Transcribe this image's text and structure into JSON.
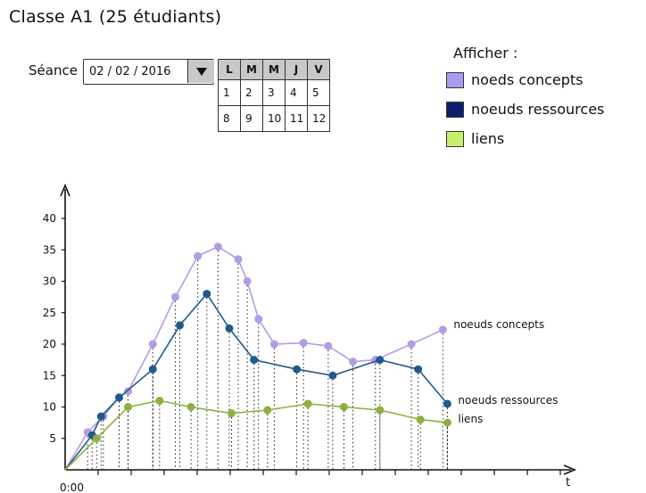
{
  "page": {
    "title": "Classe A1 (25 étudiants)"
  },
  "seance": {
    "label": "Séance",
    "date_value": "02 / 02 / 2016",
    "dropdown_icon": "triangle-down-icon"
  },
  "calendar": {
    "headers": [
      "L",
      "M",
      "M",
      "J",
      "V"
    ],
    "rows": [
      [
        "1",
        "2",
        "3",
        "4",
        "5"
      ],
      [
        "8",
        "9",
        "10",
        "11",
        "12"
      ]
    ]
  },
  "display": {
    "title": "Afficher :",
    "options": [
      {
        "label": "noeds concepts",
        "color": "#a99cf0"
      },
      {
        "label": "noeuds ressources",
        "color": "#0d1f6b"
      },
      {
        "label": "liens",
        "color": "#c8ef6a"
      }
    ]
  },
  "chart_data": {
    "type": "line",
    "ylim": [
      0,
      44
    ],
    "xlim": [
      0,
      100
    ],
    "y_ticks": [
      "5",
      "10",
      "15",
      "20",
      "25",
      "30",
      "35",
      "40"
    ],
    "x_start_label": "0:00",
    "x_axis_label": "t",
    "series": [
      {
        "name": "noeuds concepts",
        "color": "#b59be6",
        "points": [
          [
            0,
            0
          ],
          [
            5,
            6
          ],
          [
            8.5,
            8.5
          ],
          [
            12,
            11.5
          ],
          [
            14,
            12.5
          ],
          [
            19.5,
            20
          ],
          [
            24.5,
            27.5
          ],
          [
            29.5,
            34
          ],
          [
            34,
            35.5
          ],
          [
            38.5,
            33.5
          ],
          [
            40.5,
            30
          ],
          [
            43,
            24
          ],
          [
            46.5,
            20
          ],
          [
            53,
            20.2
          ],
          [
            58.5,
            19.7
          ],
          [
            64,
            17.2
          ],
          [
            69,
            17.5
          ],
          [
            77,
            20
          ],
          [
            84,
            22.3
          ]
        ]
      },
      {
        "name": "noeuds ressources",
        "color": "#1f5a8c",
        "points": [
          [
            0,
            0
          ],
          [
            6,
            5.5
          ],
          [
            8,
            8.5
          ],
          [
            12,
            11.5
          ],
          [
            19.5,
            16
          ],
          [
            25.5,
            23
          ],
          [
            31.5,
            28
          ],
          [
            36.5,
            22.5
          ],
          [
            42,
            17.5
          ],
          [
            51.5,
            16
          ],
          [
            59.5,
            15
          ],
          [
            70,
            17.5
          ],
          [
            78.5,
            16
          ],
          [
            85,
            10.5
          ]
        ]
      },
      {
        "name": "liens",
        "color": "#8db13c",
        "points": [
          [
            0,
            0
          ],
          [
            7,
            5
          ],
          [
            14,
            10
          ],
          [
            21,
            11
          ],
          [
            28,
            10
          ],
          [
            37,
            9
          ],
          [
            45,
            9.5
          ],
          [
            54,
            10.5
          ],
          [
            62,
            10
          ],
          [
            70,
            9.5
          ],
          [
            79,
            8
          ],
          [
            85,
            7.5
          ]
        ]
      }
    ]
  }
}
